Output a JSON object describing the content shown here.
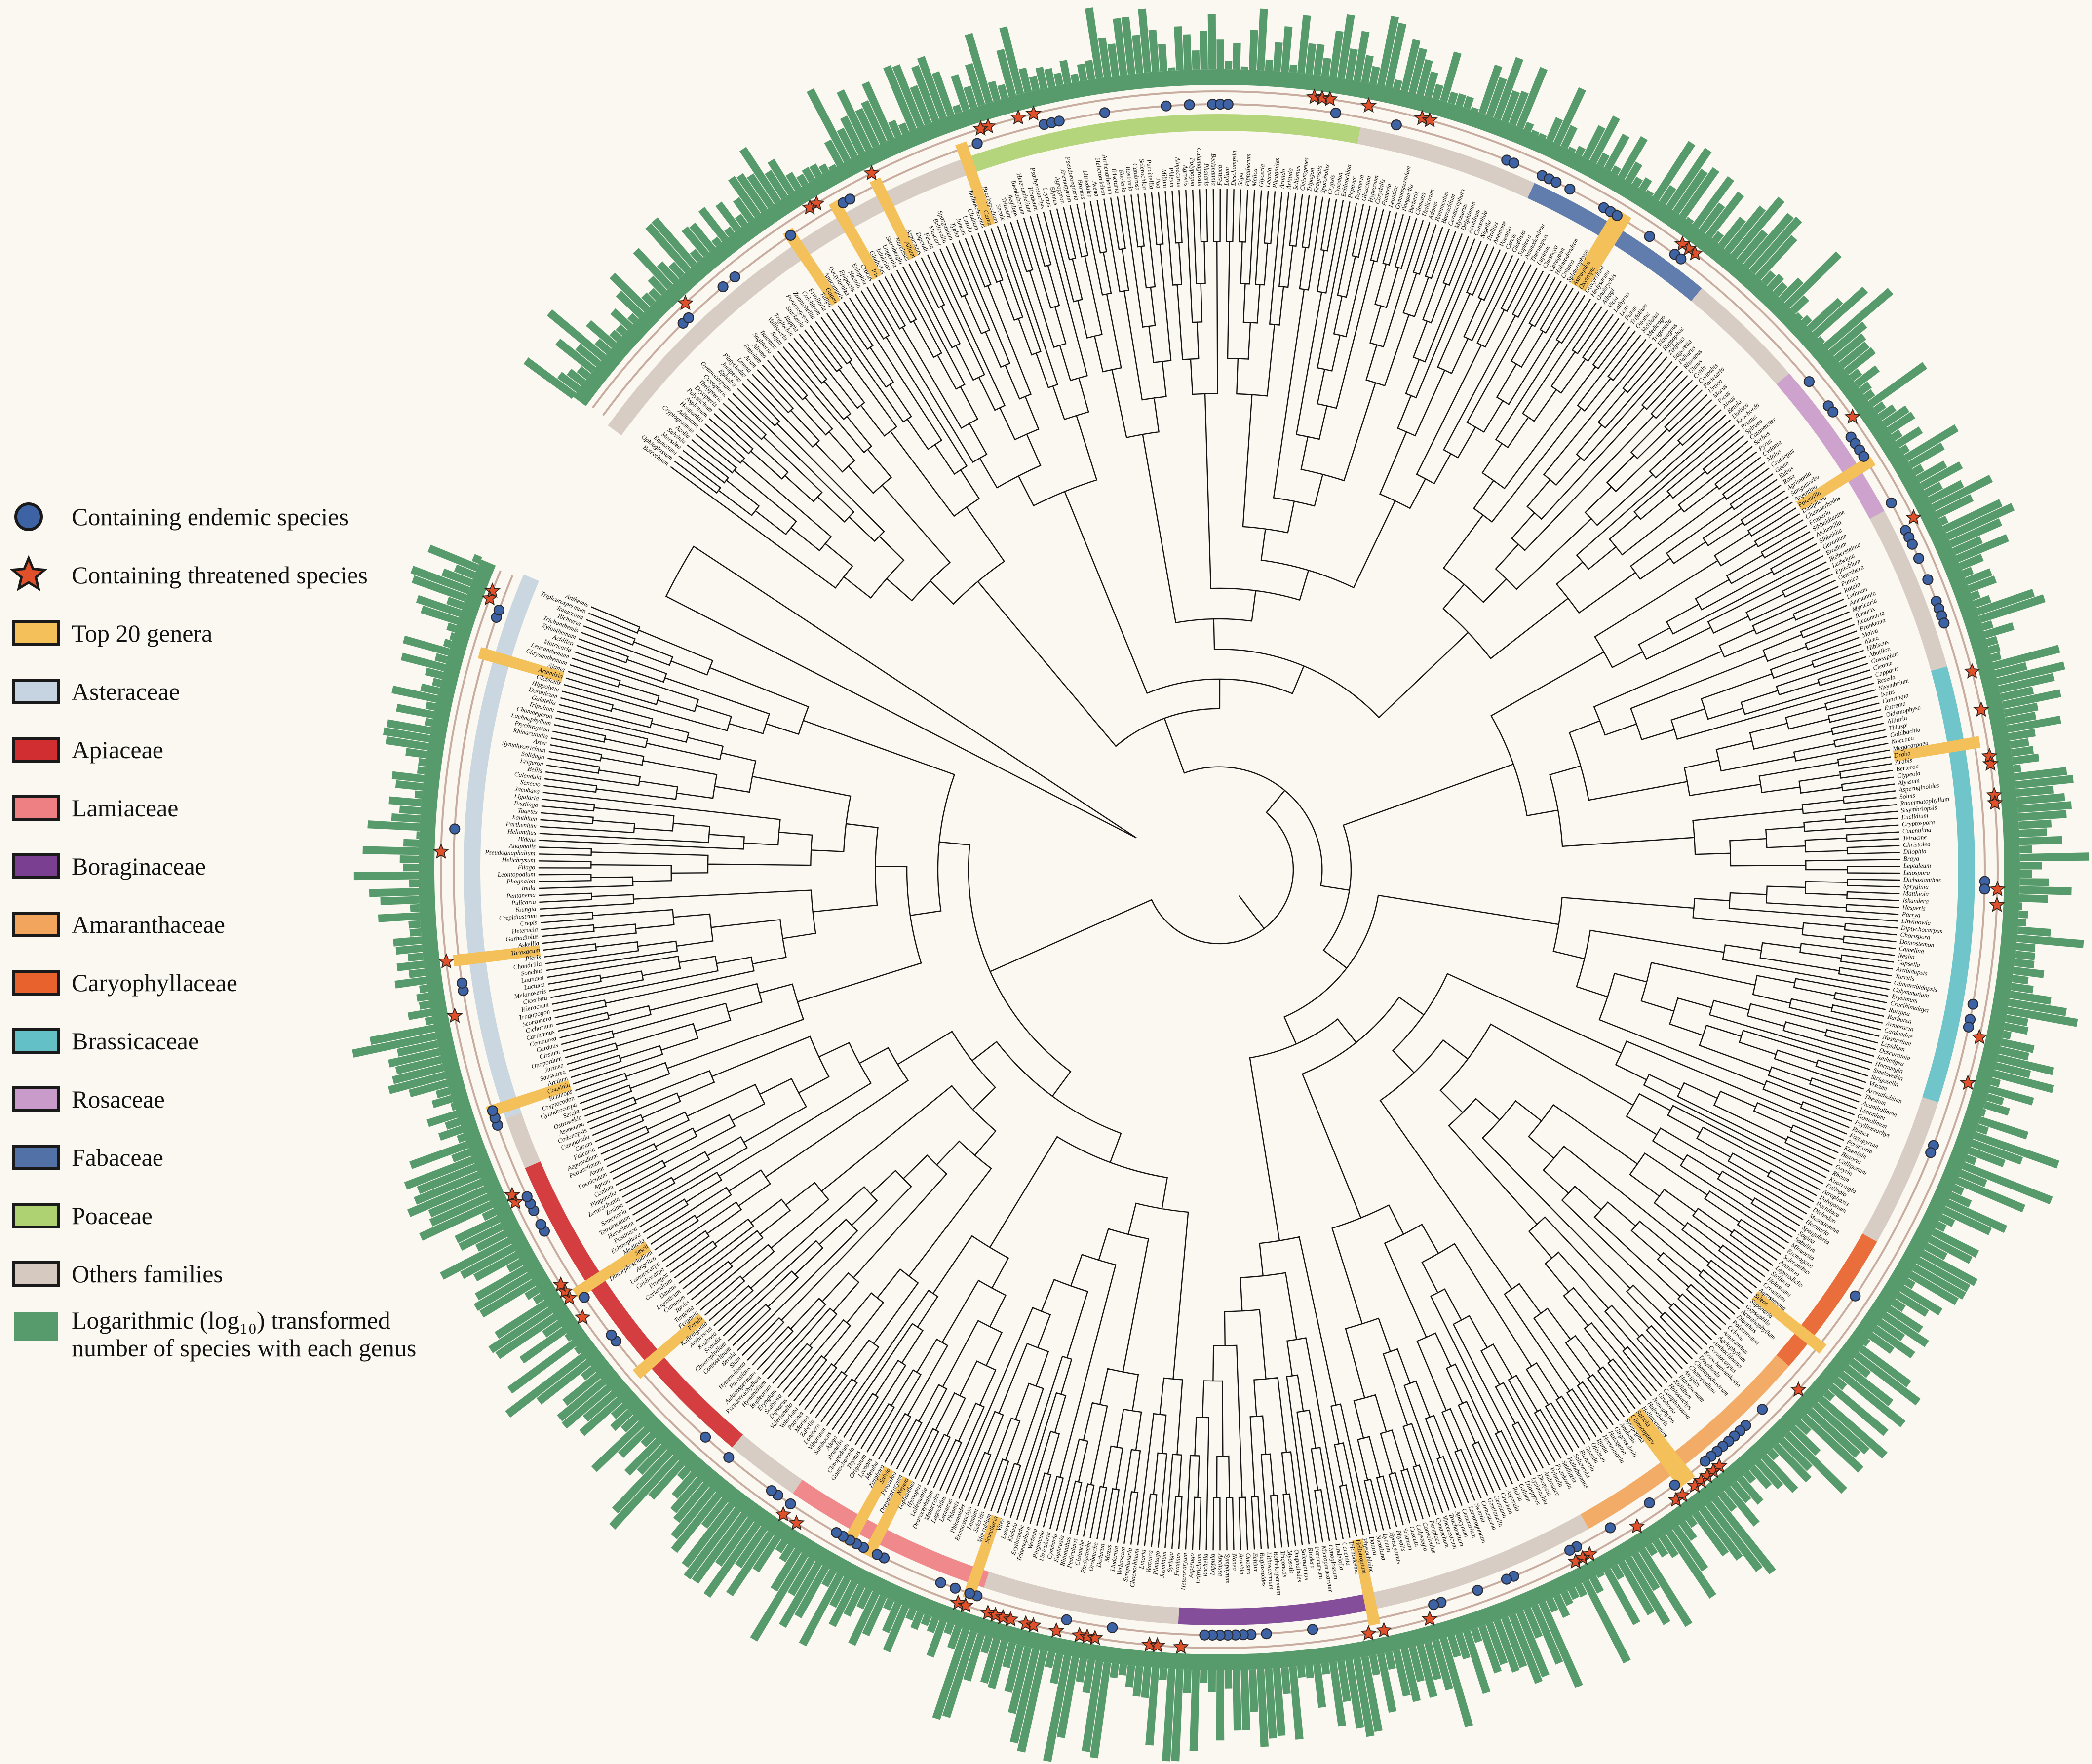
{
  "figure": {
    "kind": "circular phylogenetic tree of vascular plant genera",
    "background": "#faf8f0"
  },
  "legend": {
    "items": [
      {
        "id": "endemic",
        "label": "Containing endemic species",
        "symbol": "circle",
        "color": "#3d63a5"
      },
      {
        "id": "threatened",
        "label": "Containing threatened species",
        "symbol": "star",
        "color": "#e0512b"
      },
      {
        "id": "top20",
        "label": "Top 20 genera",
        "symbol": "swatch",
        "color": "#f4c05a"
      },
      {
        "id": "asteraceae",
        "label": "Asteraceae",
        "symbol": "swatch",
        "color": "#c5d4e0"
      },
      {
        "id": "apiaceae",
        "label": "Apiaceae",
        "symbol": "swatch",
        "color": "#d02e31"
      },
      {
        "id": "lamiaceae",
        "label": "Lamiaceae",
        "symbol": "swatch",
        "color": "#ee7f82"
      },
      {
        "id": "boraginaceae",
        "label": "Boraginaceae",
        "symbol": "swatch",
        "color": "#7b3f92"
      },
      {
        "id": "amaranthaceae",
        "label": "Amaranthaceae",
        "symbol": "swatch",
        "color": "#f2a55c"
      },
      {
        "id": "caryophyllaceae",
        "label": "Caryophyllaceae",
        "symbol": "swatch",
        "color": "#e7622c"
      },
      {
        "id": "brassicaceae",
        "label": "Brassicaceae",
        "symbol": "swatch",
        "color": "#63c0c6"
      },
      {
        "id": "rosaceae",
        "label": "Rosaceae",
        "symbol": "swatch",
        "color": "#c99bca"
      },
      {
        "id": "fabaceae",
        "label": "Fabaceae",
        "symbol": "swatch",
        "color": "#5272a7"
      },
      {
        "id": "poaceae",
        "label": "Poaceae",
        "symbol": "swatch",
        "color": "#aed172"
      },
      {
        "id": "others",
        "label": "Others families",
        "symbol": "swatch",
        "color": "#d5c9c0"
      },
      {
        "id": "logbar",
        "label_line1": "Logarithmic (log₁₀) transformed",
        "label_line2": "number of species with each genus",
        "symbol": "swatch",
        "color": "#579a6b"
      }
    ]
  },
  "chart_data": {
    "type": "circular_phylogeny",
    "tip_count": 600,
    "outer_bar_ring": {
      "label": "Logarithmic (log₁₀) transformed number of species with each genus",
      "color": "#579a6b",
      "scale": "log10",
      "value_range": [
        0,
        2.5
      ]
    },
    "marker_rings": [
      {
        "name": "Containing endemic species",
        "symbol": "circle",
        "color": "#3d63a5"
      },
      {
        "name": "Containing threatened species",
        "symbol": "star",
        "color": "#e0512b"
      }
    ],
    "top20_genera": {
      "color": "#f4c05a",
      "names": [
        "Carex",
        "Gagea",
        "Allium",
        "Iris",
        "Astragalus",
        "Oxytropis",
        "Potentilla",
        "Draba",
        "Silene",
        "Salsola",
        "Climacoptera",
        "Heliotropium",
        "Scutellaria",
        "Nepeta",
        "Salvia",
        "Ferula",
        "Seseli",
        "Cousinia",
        "Taraxacum",
        "Artemisia"
      ]
    },
    "sections": [
      {
        "family": "Others",
        "color": "#d5c9c0",
        "genera": [
          "Botrychium",
          "Ophioglossum",
          "Equisetum",
          "Marsilea",
          "Salvinia",
          "Azolla",
          "Cryptogramma",
          "Adiantum",
          "Hemionitis",
          "Asplenium",
          "Polystichum",
          "Dryopteris",
          "Thelypteris",
          "Cystopteris",
          "Gymnocarpium",
          "Ephedra",
          "Juniperus",
          "Platycladus",
          "Lemna",
          "Arum",
          "Eminium",
          "Alisma",
          "Sagittaria",
          "Butomus",
          "Najas",
          "Vallisneria",
          "Triglochin",
          "Ruppia",
          "Stuckenia",
          "Potamogeton",
          "Zannichellia",
          "Colchicum",
          "Fritillaria",
          "Tulipa",
          "Gagea",
          "Anacamptis",
          "Dactylorhiza",
          "Epipactis",
          "Neottia",
          "Eulophia",
          "Crocus",
          "Iris",
          "Gladiolus",
          "Ixiolirion",
          "Ungernia",
          "Sternbergia",
          "Narcissus",
          "Allium",
          "Asparagus",
          "Dipcadi",
          "Fessia",
          "Muscari",
          "Bellevalia",
          "Sparganium",
          "Typha",
          "Juncus",
          "Luzula",
          "Cladium",
          "Bolboschoenus",
          "Carex"
        ]
      },
      {
        "family": "Poaceae",
        "color": "#aed172",
        "genera": [
          "Brachypodium",
          "Secale",
          "Triticum",
          "Aegilops",
          "Taeniatherum",
          "Heteranthelium",
          "Hordeum",
          "Psathyrostachys",
          "Leymus",
          "Elymus",
          "Agropyron",
          "Eremopyrum",
          "Pseudoroegneria",
          "Bromus",
          "Littledalea",
          "Avena",
          "Helictotrichon",
          "Arrhenatherum",
          "Trisetaria",
          "Koeleria",
          "Rostraria",
          "Catabrosa",
          "Sclerochloa",
          "Puccinellia",
          "Poa",
          "Milium",
          "Phleum",
          "Alopecurus",
          "Agrostis",
          "Polypogon",
          "Calamagrostis",
          "Phalaris",
          "Beckmannia",
          "Festuca",
          "Lolium",
          "Deschampsia",
          "Stipa",
          "Piptatherum",
          "Melica",
          "Glyceria",
          "Leersia",
          "Phragmites",
          "Arundo",
          "Aristida",
          "Schismus",
          "Cleistogenes",
          "Tripogon",
          "Eragrostis",
          "Sporobolus",
          "Crypsis",
          "Cynodon",
          "Echinochloa"
        ]
      },
      {
        "family": "Others",
        "color": "#d5c9c0",
        "genera": [
          "Papaver",
          "Roemeria",
          "Glaucium",
          "Hypecoum",
          "Corydalis",
          "Fumaria",
          "Leontice",
          "Gymnospermium",
          "Bongardia",
          "Berberis",
          "Clematis",
          "Thalictrum",
          "Adonis",
          "Ranunculus",
          "Batrachium",
          "Ceratocephala",
          "Myosurus",
          "Delphinium",
          "Aconitum",
          "Consolida",
          "Nigella",
          "Trollius",
          "Anemone",
          "Paeonia"
        ]
      },
      {
        "family": "Fabaceae",
        "color": "#5272a7",
        "genera": [
          "Cercis",
          "Gleditsia",
          "Sophora",
          "Ammodendron",
          "Thermopsis",
          "Lupinus",
          "Chesneya",
          "Caragana",
          "Halimodendron",
          "Colutea",
          "Sphaerophysa",
          "Astragalus",
          "Oxytropis",
          "Glycyrrhiza",
          "Hedysarum",
          "Onobrychis",
          "Alhagi",
          "Vicia",
          "Lathyrus",
          "Lens",
          "Pisum",
          "Trifolium",
          "Ononis",
          "Melilotus",
          "Medicago",
          "Trigonella"
        ]
      },
      {
        "family": "Others",
        "color": "#d5c9c0",
        "genera": [
          "Elaeagnus",
          "Hippophae",
          "Ziziphus",
          "Sageretia",
          "Paliurus",
          "Rhamnus",
          "Ulmus",
          "Celtis",
          "Cannabis",
          "Parietaria",
          "Urtica",
          "Morus",
          "Ficus",
          "Alnus",
          "Betula",
          "Datisca"
        ]
      },
      {
        "family": "Rosaceae",
        "color": "#c99bca",
        "genera": [
          "Exochorda",
          "Prunus",
          "Spiraea",
          "Cotoneaster",
          "Sorbus",
          "Pyrus",
          "Cydonia",
          "Malus",
          "Crataegus",
          "Geum",
          "Rubus",
          "Rosa",
          "Agrimonia",
          "Sanguisorba",
          "Argentina",
          "Potentilla",
          "Dasiphora",
          "Chamaerhodos",
          "Fragaria",
          "Sibbaldianthe",
          "Alchemilla",
          "Sibbaldia"
        ]
      },
      {
        "family": "Others",
        "color": "#d5c9c0",
        "genera": [
          "Geranium",
          "Erodium",
          "Biebersteinia",
          "Ludwigia",
          "Epilobium",
          "Oenothera",
          "Punica",
          "Rotala",
          "Lythrum",
          "Ammannia",
          "Myricaria",
          "Tamarix",
          "Reaumuria",
          "Frankenia",
          "Malva",
          "Alcea",
          "Hibiscus",
          "Abutilon",
          "Gossypium",
          "Cleome",
          "Capparis",
          "Reseda"
        ]
      },
      {
        "family": "Brassicaceae",
        "color": "#63c0c6",
        "genera": [
          "Sisymbrium",
          "Isatis",
          "Conringia",
          "Eutrema",
          "Didymophysa",
          "Alliaria",
          "Thlaspi",
          "Goldbachia",
          "Noccaea",
          "Megacarpaea",
          "Draba",
          "Arabis",
          "Berteroa",
          "Clypeola",
          "Alyssum",
          "Asperuginoides",
          "Solms",
          "Rhammatophyllum",
          "Sisymbriopsis",
          "Euclidium",
          "Cryptospora",
          "Catenulina",
          "Tetracme",
          "Christolea",
          "Dilophia",
          "Braya",
          "Leptaleum",
          "Leiospora",
          "Dichasianthus",
          "Spryginia",
          "Matthiola",
          "Iskandera",
          "Hesperis",
          "Parrya",
          "Litwinowia",
          "Diptychocarpus",
          "Chorispora",
          "Dontostemon",
          "Camelina",
          "Neslia",
          "Capsella",
          "Arabidopsis",
          "Turritis",
          "Olimarabidopsis",
          "Calymmatium",
          "Erysimum",
          "Crucihimalaya",
          "Rorippa",
          "Barbarea",
          "Armoracia",
          "Cardamine",
          "Nasturtium",
          "Lepidium",
          "Descurainia",
          "Ianhedgea",
          "Hornungia",
          "Smelowskia",
          "Strigosella"
        ]
      },
      {
        "family": "Others",
        "color": "#d5c9c0",
        "genera": [
          "Viscum",
          "Arceuthobium",
          "Thesium",
          "Acantholimon",
          "Limonium",
          "Goniolimon",
          "Psylliostachys",
          "Rumex",
          "Fagopyrum",
          "Persicaria",
          "Koenigia",
          "Bistorta",
          "Calligonum",
          "Oxyria",
          "Rheum",
          "Knorringia",
          "Fallopia",
          "Atraphaxis",
          "Polygonum",
          "Portulaca"
        ]
      },
      {
        "family": "Caryophyllaceae",
        "color": "#e7622c",
        "genera": [
          "Dichodon",
          "Mesostemma",
          "Herniaria",
          "Spergularia",
          "Sagina",
          "Sabulina",
          "Minuartia",
          "Eremogone",
          "Scleranthus",
          "Arenaria",
          "Lepyrodiclis",
          "Stellaria",
          "Holosteum",
          "Cerastium",
          "Agrostemma",
          "Silene",
          "Saponaria",
          "Gypsophila",
          "Acanthophyllum",
          "Dianthus"
        ]
      },
      {
        "family": "Amaranthaceae",
        "color": "#f2a55c",
        "genera": [
          "Polycnemum",
          "Celosia",
          "Amaranthus",
          "Agriophyllum",
          "Anthochlamys",
          "Ceratocarpus",
          "Krascheninnikovia",
          "Dysphania",
          "Chenopodiastrum",
          "Chenopodium",
          "Atriplex",
          "Halocnemum",
          "Kalidium",
          "Halostachys",
          "Camphorosma",
          "Grubovia",
          "Nanophyton",
          "Halocharis",
          "Halimocnemis",
          "Salsola",
          "Climacoptera",
          "Sympegma",
          "Anabasis",
          "Girgensohnia",
          "Halogeton",
          "Horaninovia",
          "Iljinia",
          "Ofaiston",
          "Suaeda",
          "Bienertia",
          "Salicornia",
          "Halothamnus",
          "Seidlitzia",
          "Pyankovia"
        ]
      },
      {
        "family": "Others",
        "color": "#d5c9c0",
        "genera": [
          "Primula",
          "Androsace",
          "Dionysia",
          "Lysimachia",
          "Diospyros",
          "Galium",
          "Rubia",
          "Asperula",
          "Cruciata",
          "Gentiana",
          "Gentianella",
          "Comastoma",
          "Swertia",
          "Lomatogonium",
          "Centaurium",
          "Apocynum",
          "Trachomitum",
          "Vincetoxicum",
          "Cynanchum",
          "Periploca",
          "Convolvulus",
          "Calystegia",
          "Cuscuta",
          "Solanum",
          "Physalis",
          "Hyoscyamus",
          "Lycium",
          "Nicotiana",
          "Datura",
          "Physochlaina"
        ]
      },
      {
        "family": "Boraginaceae",
        "color": "#7b3f92",
        "genera": [
          "Heliotropium",
          "Trichodesma",
          "Caccinia",
          "Lindelofia",
          "Cynoglossum",
          "Microparacaryum",
          "Paracaryum",
          "Rindera",
          "Solenanthus",
          "Omphalodes",
          "Myosotis",
          "Trigonotis",
          "Bothriospermum",
          "Lithospermum",
          "Buglossoides",
          "Echium",
          "Onosma",
          "Arnebia",
          "Nonea",
          "Symphytum",
          "Anchusa",
          "Lappula",
          "Rochelia",
          "Eritrichium",
          "Asperugo",
          "Heterocaryum"
        ]
      },
      {
        "family": "Others",
        "color": "#d5c9c0",
        "genera": [
          "Fraxinus",
          "Syringa",
          "Jasminum",
          "Plantago",
          "Veronica",
          "Linaria",
          "Chaenorhinum",
          "Scrophularia",
          "Verbascum",
          "Lindernia",
          "Mazus",
          "Dodartia",
          "Orobanche",
          "Phelipanche",
          "Cistanche",
          "Pedicularis",
          "Rhinanthus",
          "Euphrasia",
          "Cymbaria",
          "Utricularia",
          "Pinguicula",
          "Verbena",
          "Triaenophora",
          "Erythranthe",
          "Kickxia",
          "Lancea"
        ]
      },
      {
        "family": "Lamiaceae",
        "color": "#ee7f82",
        "genera": [
          "Vitex",
          "Scutellaria",
          "Marrubium",
          "Sideritis",
          "Lamium",
          "Eremostachys",
          "Phlomoides",
          "Phlomis",
          "Leonurus",
          "Lagochilus",
          "Moluccella",
          "Dracocephalum",
          "Lallemantia",
          "Hyssopus",
          "Lophanthus",
          "Nepeta",
          "Drepanocaryum",
          "Perovskia",
          "Salvia",
          "Ziziphora",
          "Mentha",
          "Lycopus",
          "Origanum",
          "Thymus",
          "Gontscharovia",
          "Clinopodium",
          "Prunella",
          "Ajuga"
        ]
      },
      {
        "family": "Others",
        "color": "#d5c9c0",
        "genera": [
          "Sambucus",
          "Viburnum",
          "Lonicera",
          "Zabelia",
          "Morina",
          "Patrinia",
          "Valeriana",
          "Valerianella",
          "Dipsacus",
          "Scabiosa"
        ]
      },
      {
        "family": "Apiaceae",
        "color": "#d02e31",
        "genera": [
          "Eryngium",
          "Bupleurum",
          "Hymenidium",
          "Pseudotrachydium",
          "Aulacospermum",
          "Parasilaus",
          "Hymenolaena",
          "Sium",
          "Berula",
          "Conioselinum",
          "Chaerophyllum",
          "Scandix",
          "Kozlovia",
          "Anthriscus",
          "Kafirnigania",
          "Ferula",
          "Fergania",
          "Turgenia",
          "Torilis",
          "Cuminum",
          "Ligusticum",
          "Daucus",
          "Coriandrum",
          "Prangos",
          "Cnidiocarpa",
          "Lomatocarpa",
          "Angelica",
          "Dimorphosciadium",
          "Seseli",
          "Mediasia",
          "Echinophora",
          "Pastinaca",
          "Heracleum",
          "Tetrataenium",
          "Semenovia",
          "Zosima",
          "Zeravschania",
          "Pimpinella",
          "Conium",
          "Apium",
          "Foeniculum",
          "Ammi",
          "Petroselinum",
          "Aegopodium",
          "Falcaria",
          "Carum"
        ]
      },
      {
        "family": "Others",
        "color": "#d5c9c0",
        "genera": [
          "Campanula",
          "Codonopsis",
          "Asyneuma",
          "Ostrowskia",
          "Sergia",
          "Cylindrocarpa",
          "Cryptocodon"
        ]
      },
      {
        "family": "Asteraceae",
        "color": "#c5d4e0",
        "genera": [
          "Echinops",
          "Cousinia",
          "Arctium",
          "Saussurea",
          "Jurinea",
          "Onopordum",
          "Cirsium",
          "Carduus",
          "Centaurea",
          "Carthamus",
          "Cichorium",
          "Scorzonera",
          "Tragopogon",
          "Hieracium",
          "Cicerbita",
          "Melanoseris",
          "Lactuca",
          "Launaea",
          "Sonchus",
          "Chondrilla",
          "Picris",
          "Taraxacum",
          "Askellia",
          "Garhadiolus",
          "Heteracia",
          "Crepis",
          "Crepidiastrum",
          "Youngia",
          "Pulicaria",
          "Pentanema",
          "Inula",
          "Phagnalon",
          "Leontopodium",
          "Filago",
          "Helichrysum",
          "Pseudognaphalium",
          "Anaphalis",
          "Bidens",
          "Helianthus",
          "Parthenium",
          "Xanthium",
          "Tagetes",
          "Tussilago",
          "Ligularia",
          "Jacobaea",
          "Senecio",
          "Calendula",
          "Bellis",
          "Erigeron",
          "Solidago",
          "Symphyotrichum",
          "Aster",
          "Rhinactinidia",
          "Psychrogeton",
          "Lachnophyllum",
          "Chamaegeron",
          "Tripolium",
          "Galatella",
          "Doronicum",
          "Hippolytia",
          "Glebionis",
          "Artemisia",
          "Ajania",
          "Chrysanthemum",
          "Leucanthemum",
          "Matricaria",
          "Achillea",
          "Xylanthemum",
          "Trichanthemis",
          "Richteria",
          "Tanacetum",
          "Tripleurospermum",
          "Anthemis"
        ]
      }
    ]
  }
}
